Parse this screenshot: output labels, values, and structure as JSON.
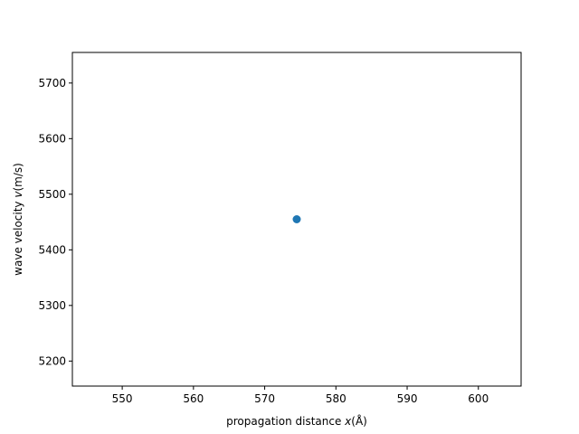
{
  "chart_data": {
    "type": "scatter",
    "title": "",
    "xlabel_parts": {
      "text": "propagation distance ",
      "var": "x",
      "unit": "(Å)"
    },
    "ylabel_parts": {
      "text": "wave velocity ",
      "var": "v",
      "unit": "(m/s)"
    },
    "xlim": [
      543,
      606
    ],
    "ylim": [
      5155,
      5755
    ],
    "xticks": [
      550,
      560,
      570,
      580,
      590,
      600
    ],
    "yticks": [
      5200,
      5300,
      5400,
      5500,
      5600,
      5700
    ],
    "grid": false,
    "series": [
      {
        "x": [
          574.5
        ],
        "y": [
          5455
        ],
        "color": "#1f77b4"
      }
    ]
  }
}
